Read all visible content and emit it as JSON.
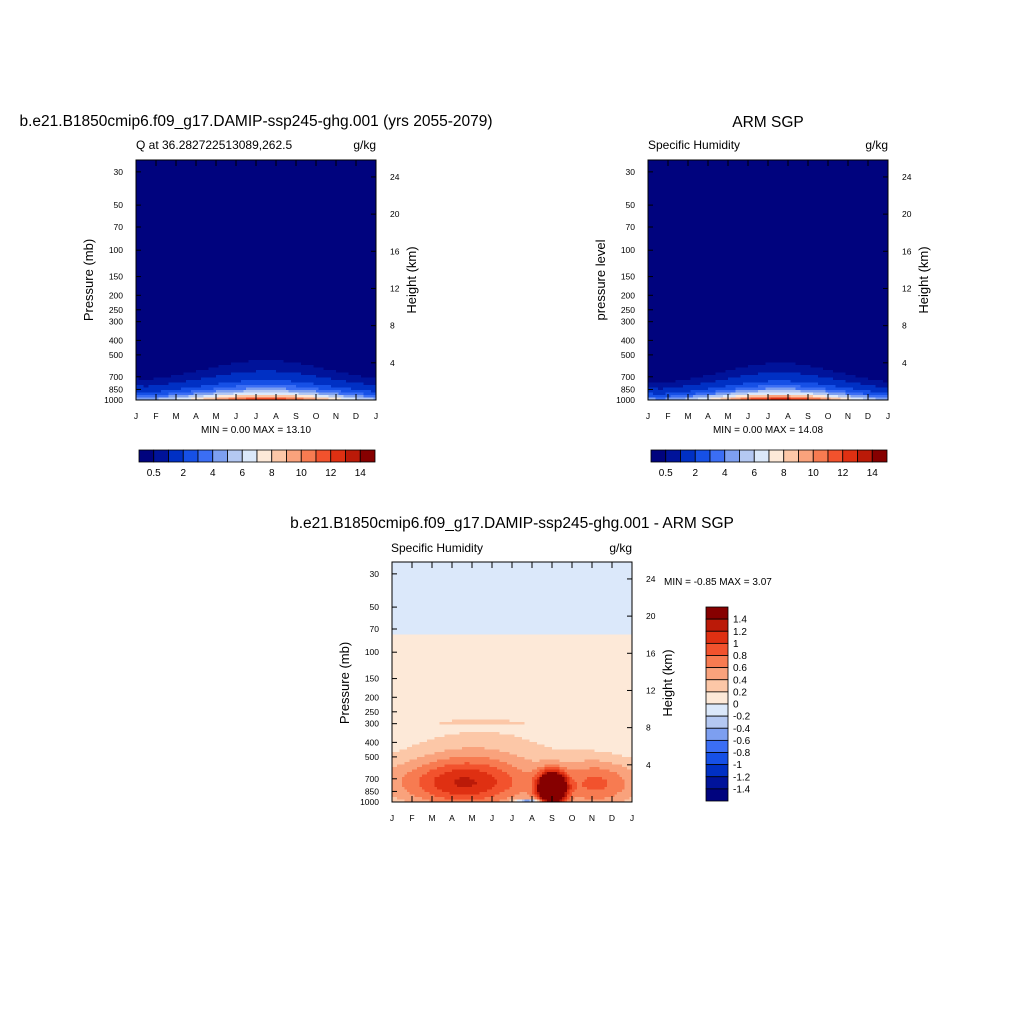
{
  "colors": {
    "abs_scale": [
      "#00037e",
      "#00139a",
      "#0030c4",
      "#1650e6",
      "#3b6ef4",
      "#7d9ff0",
      "#b4c8f2",
      "#dbe8fa",
      "#fde9d8",
      "#fcc7a7",
      "#f9a27c",
      "#f77b51",
      "#f2522d",
      "#df3012",
      "#bb1a08",
      "#860000"
    ],
    "diff_scale": [
      "#00037e",
      "#00139a",
      "#0030c4",
      "#1650e6",
      "#3b6ef4",
      "#7d9ff0",
      "#b4c8f2",
      "#dbe8fa",
      "#fde9d8",
      "#fcc7a7",
      "#f9a27c",
      "#f77b51",
      "#f2522d",
      "#df3012",
      "#bb1a08",
      "#860000"
    ]
  },
  "panels": {
    "p1": {
      "title": "b.e21.B1850cmip6.f09_g17.DAMIP-ssp245-ghg.001 (yrs 2055-2079)",
      "left_label": "Q at 36.282722513089,262.5",
      "right_label": "g/kg",
      "ylabel": "Pressure (mb)",
      "y2label": "Height (km)",
      "stats": "MIN =   0.00 MAX =  13.10"
    },
    "p2": {
      "title": "ARM SGP",
      "left_label": "Specific Humidity",
      "right_label": "g/kg",
      "ylabel": "pressure level",
      "y2label": "Height (km)",
      "stats": "MIN =   0.00 MAX =  14.08"
    },
    "p3": {
      "title": "b.e21.B1850cmip6.f09_g17.DAMIP-ssp245-ghg.001 - ARM SGP",
      "left_label": "Specific Humidity",
      "right_label": "g/kg",
      "ylabel": "Pressure (mb)",
      "y2label": "Height (km)",
      "stats": "MIN =  -0.85 MAX =   3.07"
    }
  },
  "chart_data": [
    {
      "type": "heatmap",
      "panel": "p1",
      "x": [
        "J",
        "F",
        "M",
        "A",
        "M",
        "J",
        "J",
        "A",
        "S",
        "O",
        "N",
        "D",
        "J"
      ],
      "y_pressure_ticks": [
        30,
        50,
        70,
        100,
        150,
        200,
        250,
        300,
        400,
        500,
        700,
        850,
        1000
      ],
      "y2_height_ticks": [
        4,
        8,
        12,
        16,
        20,
        24
      ],
      "ylim": [
        1000,
        25
      ],
      "units": "g/kg",
      "colorbar_labels": [
        "0.5",
        "2",
        "4",
        "6",
        "8",
        "10",
        "12",
        "14"
      ],
      "field": {
        "peak": 13.1,
        "peak_month": 6.5,
        "surface_min": 4.0,
        "surface_amp": 9.1,
        "scale_height_mb_min": 110,
        "scale_height_mb_amp": 30,
        "width_months": 3.0,
        "dry_top_shift_mb": 0
      }
    },
    {
      "type": "heatmap",
      "panel": "p2",
      "x": [
        "J",
        "F",
        "M",
        "A",
        "M",
        "J",
        "J",
        "A",
        "S",
        "O",
        "N",
        "D",
        "J"
      ],
      "y_pressure_ticks": [
        30,
        50,
        70,
        100,
        150,
        200,
        250,
        300,
        400,
        500,
        700,
        850,
        1000
      ],
      "y2_height_ticks": [
        4,
        8,
        12,
        16,
        20,
        24
      ],
      "ylim": [
        1000,
        25
      ],
      "units": "g/kg",
      "colorbar_labels": [
        "0.5",
        "2",
        "4",
        "6",
        "8",
        "10",
        "12",
        "14"
      ],
      "field": {
        "peak": 14.08,
        "peak_month": 6.6,
        "surface_min": 3.5,
        "surface_amp": 10.58,
        "scale_height_mb_min": 100,
        "scale_height_mb_amp": 30,
        "width_months": 2.8,
        "dry_top_shift_mb": 0
      }
    },
    {
      "type": "heatmap",
      "panel": "p3",
      "x": [
        "J",
        "F",
        "M",
        "A",
        "M",
        "J",
        "J",
        "A",
        "S",
        "O",
        "N",
        "D",
        "J"
      ],
      "y_pressure_ticks": [
        30,
        50,
        70,
        100,
        150,
        200,
        250,
        300,
        400,
        500,
        700,
        850,
        1000
      ],
      "y2_height_ticks": [
        4,
        8,
        12,
        16,
        20,
        24
      ],
      "ylim": [
        1000,
        25
      ],
      "units": "g/kg",
      "colorbar_labels": [
        "1.4",
        "1.2",
        "1",
        "0.8",
        "0.6",
        "0.4",
        "0.2",
        "0",
        "-0.2",
        "-0.4",
        "-0.6",
        "-0.8",
        "-1",
        "-1.2",
        "-1.4"
      ],
      "field": {
        "min": -0.85,
        "max": 3.07
      }
    }
  ]
}
